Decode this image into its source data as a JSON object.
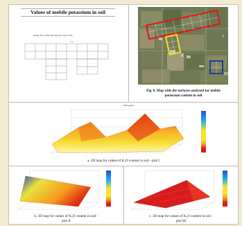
{
  "table_panel": {
    "title": "Values of mobile potassium in soil",
    "legend_line": "Sicilian | Excel | Table | First | Between | Approx | Fine",
    "value_red": "1.2"
  },
  "map_panel": {
    "caption_line1": "Fig. 8. Map with the surfaces analysed for mobile",
    "caption_line2": "potassium content in soil",
    "plot_labels": [
      "I",
      "II",
      "III"
    ],
    "colors": {
      "plot1": "#d81c1c",
      "plot2": "#f2df2a",
      "plot3": "#1f3a93"
    }
  },
  "chart_a": {
    "title": "K2O (ppm)",
    "caption_prefix": "a.",
    "caption": "3D map for values of K₂O content in soil - plot I"
  },
  "chart_b": {
    "caption_prefix": "b.",
    "caption_line1": "3D map for values of K₂O content in soil -",
    "caption_line2": "plot II"
  },
  "chart_c": {
    "caption_prefix": "c.",
    "caption_line1": "3D map for values of K₂O content in soil -",
    "caption_line2": "plot III"
  },
  "colorbar": {
    "colors": [
      "#1e4fd8",
      "#21b4e8",
      "#f5e62a",
      "#f0a020",
      "#d81c1c"
    ]
  }
}
